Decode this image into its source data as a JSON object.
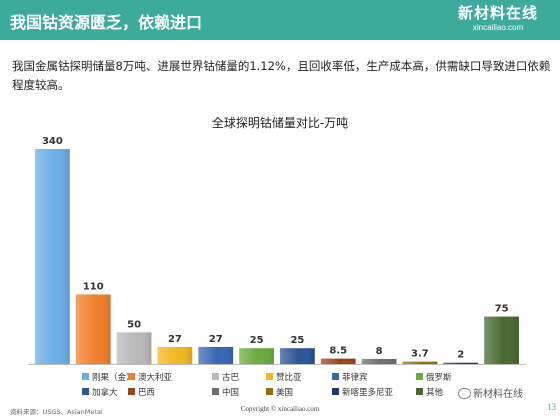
{
  "header": {
    "title": "我国钴资源匮乏，依赖进口",
    "logo_cn": "新材料在线",
    "logo_url": "xincailiao.com"
  },
  "intro": "我国金属钴探明储量8万吨、进展世界钴储量的1.12%，且回收率低，生产成本高，供需缺口导致进口依赖程度较高。",
  "chart_data": {
    "type": "bar",
    "title": "全球探明钴储量对比-万吨",
    "xlabel": "",
    "ylabel": "",
    "ylim": [
      0,
      340
    ],
    "grid": false,
    "legend_position": "bottom",
    "categories": [
      "刚果（金）",
      "澳大利亚",
      "古巴",
      "赞比亚",
      "菲律宾",
      "俄罗斯",
      "加拿大",
      "巴西",
      "中国",
      "美国",
      "新喀里多尼亚",
      "其他"
    ],
    "values": [
      340,
      110,
      50,
      27,
      27,
      25,
      25,
      8.5,
      8,
      3.7,
      2,
      75
    ],
    "colors": [
      "#6aaee8",
      "#f07f2a",
      "#b8b8b8",
      "#f5b51c",
      "#3766b5",
      "#6aab3b",
      "#2a5496",
      "#9c4319",
      "#6e6e6e",
      "#8e6d15",
      "#163a78",
      "#46692f"
    ]
  },
  "footer": {
    "source": "资料来源：USGS、AsianMetal",
    "copyright": "Copyright © xincailiao.com",
    "page": "13",
    "wechat": "新材料在线"
  }
}
